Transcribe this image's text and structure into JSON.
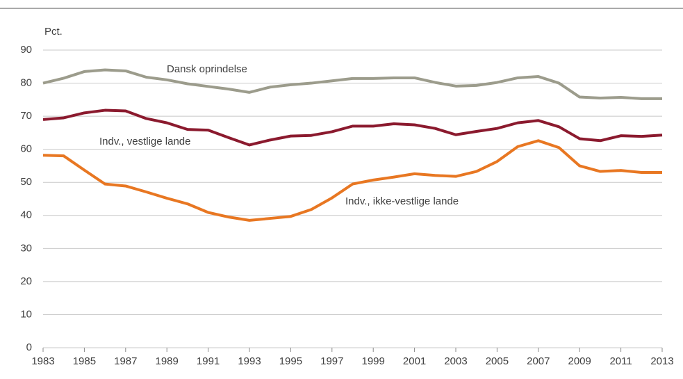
{
  "chart_data": {
    "type": "line",
    "y_label": "Pct.",
    "x": [
      1983,
      1984,
      1985,
      1986,
      1987,
      1988,
      1989,
      1990,
      1991,
      1992,
      1993,
      1994,
      1995,
      1996,
      1997,
      1998,
      1999,
      2000,
      2001,
      2002,
      2003,
      2004,
      2005,
      2006,
      2007,
      2008,
      2009,
      2010,
      2011,
      2012,
      2013
    ],
    "series": [
      {
        "name": "Dansk oprindelse",
        "color": "#9c9c8c",
        "values": [
          80,
          81.5,
          83.5,
          84,
          83.7,
          81.8,
          81,
          79.8,
          79,
          78.2,
          77.2,
          78.8,
          79.5,
          80,
          80.7,
          81.4,
          81.4,
          81.6,
          81.6,
          80.2,
          79.1,
          79.3,
          80.2,
          81.6,
          82,
          80,
          75.8,
          75.5,
          75.7,
          75.3,
          75.3
        ]
      },
      {
        "name": "Indv., vestlige lande",
        "color": "#8b1a2e",
        "values": [
          69,
          69.5,
          71,
          71.8,
          71.6,
          69.3,
          68,
          66,
          65.8,
          63.5,
          61.3,
          62.8,
          64,
          64.2,
          65.3,
          67,
          67,
          67.7,
          67.4,
          66.3,
          64.4,
          65.4,
          66.3,
          68,
          68.7,
          66.8,
          63.2,
          62.6,
          64.1,
          63.9,
          64.3
        ]
      },
      {
        "name": "Indv., ikke-vestlige lande",
        "color": "#e87722",
        "values": [
          58.2,
          58,
          53.7,
          49.5,
          48.9,
          47.1,
          45.2,
          43.5,
          40.9,
          39.5,
          38.5,
          39.1,
          39.7,
          41.8,
          45.3,
          49.5,
          50.7,
          51.6,
          52.6,
          52.1,
          51.8,
          53.3,
          56.3,
          60.8,
          62.6,
          60.5,
          55,
          53.3,
          53.6,
          53,
          53
        ]
      }
    ],
    "xlim": [
      1983,
      2013
    ],
    "xticks": [
      1983,
      1985,
      1987,
      1989,
      1991,
      1993,
      1995,
      1997,
      1999,
      2001,
      2003,
      2005,
      2007,
      2009,
      2011,
      2013
    ],
    "ylim": [
      0,
      90
    ],
    "yticks": [
      0,
      10,
      20,
      30,
      40,
      50,
      60,
      70,
      80,
      90
    ],
    "grid": true
  }
}
